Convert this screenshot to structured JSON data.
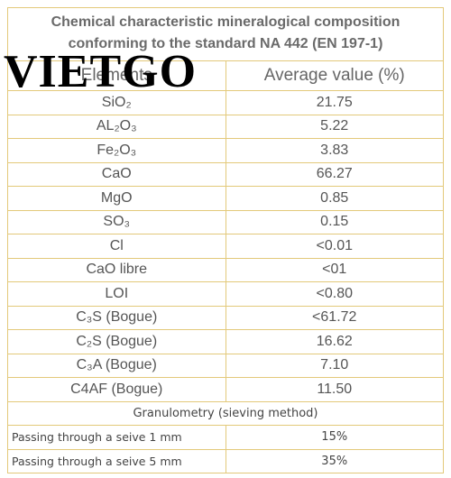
{
  "watermark": "VIETGO",
  "title": [
    "Chemical characteristic mineralogical composition",
    "conforming to the standard NA 442 (EN 197-1)"
  ],
  "table": {
    "header": [
      "Elements",
      "Average value  (%)"
    ],
    "rows": [
      [
        "SiO₂",
        "21.75"
      ],
      [
        "AL₂O₃",
        "5.22"
      ],
      [
        "Fe₂O₃",
        "3.83"
      ],
      [
        "CaO",
        "66.27"
      ],
      [
        "MgO",
        "0.85"
      ],
      [
        "SO₃",
        "0.15"
      ],
      [
        "Cl",
        "<0.01"
      ],
      [
        "CaO libre",
        "<01"
      ],
      [
        "LOI",
        "<0.80"
      ],
      [
        "C₃S (Bogue)",
        "<61.72"
      ],
      [
        "C₂S (Bogue)",
        "16.62"
      ],
      [
        "C₃A (Bogue)",
        "7.10"
      ],
      [
        "C4AF (Bogue)",
        "11.50"
      ]
    ],
    "section": "Granulometry (sieving method)",
    "granulometry": [
      [
        "Passing through a seive 1 mm",
        "15%"
      ],
      [
        "Passing through a seive 5 mm",
        "35%"
      ]
    ]
  }
}
